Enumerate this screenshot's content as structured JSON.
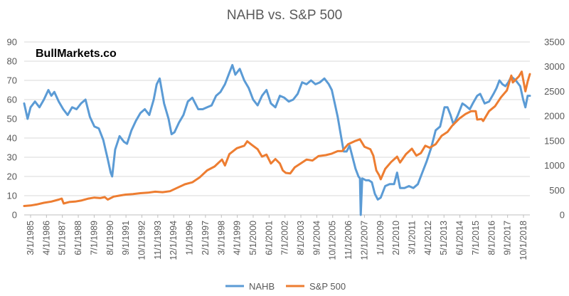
{
  "chart_data": {
    "type": "line",
    "title": "NAHB vs. S&P 500",
    "watermark": "BullMarkets.co",
    "y_left": {
      "min": 0,
      "max": 90,
      "ticks": [
        "0",
        "10",
        "20",
        "30",
        "40",
        "50",
        "60",
        "70",
        "80",
        "90"
      ]
    },
    "y_right": {
      "min": 0,
      "max": 3500,
      "ticks": [
        "0",
        "500",
        "1000",
        "1500",
        "2000",
        "2500",
        "3000",
        "3500"
      ]
    },
    "x_ticks": [
      "3/1/1985",
      "4/1/1986",
      "5/1/1987",
      "6/1/1988",
      "7/1/1989",
      "8/1/1990",
      "9/1/1991",
      "10/1/1992",
      "11/1/1993",
      "12/1/1994",
      "1/1/1996",
      "2/1/1997",
      "3/1/1998",
      "4/1/1999",
      "5/1/2000",
      "6/1/2001",
      "7/1/2002",
      "8/1/2003",
      "9/1/2004",
      "10/1/2005",
      "11/1/2006",
      "12/1/2007",
      "1/1/2009",
      "2/1/2010",
      "3/1/2011",
      "4/1/2012",
      "5/1/2013",
      "6/1/2014",
      "7/1/2015",
      "8/1/2016",
      "9/1/2017",
      "10/1/2018"
    ],
    "x_range": [
      1985.17,
      2019.25
    ],
    "series": [
      {
        "name": "NAHB",
        "axis": "left",
        "color": "#5B9BD5",
        "points": [
          [
            1985.17,
            58
          ],
          [
            1985.4,
            50
          ],
          [
            1985.6,
            56
          ],
          [
            1985.9,
            59
          ],
          [
            1986.2,
            56
          ],
          [
            1986.5,
            60
          ],
          [
            1986.8,
            65
          ],
          [
            1987.0,
            62
          ],
          [
            1987.2,
            64
          ],
          [
            1987.5,
            59
          ],
          [
            1987.8,
            55
          ],
          [
            1988.1,
            52
          ],
          [
            1988.4,
            56
          ],
          [
            1988.7,
            55
          ],
          [
            1989.0,
            58
          ],
          [
            1989.3,
            60
          ],
          [
            1989.6,
            51
          ],
          [
            1989.9,
            46
          ],
          [
            1990.2,
            45
          ],
          [
            1990.5,
            39
          ],
          [
            1990.8,
            29
          ],
          [
            1991.0,
            22
          ],
          [
            1991.1,
            20
          ],
          [
            1991.3,
            34
          ],
          [
            1991.6,
            41
          ],
          [
            1991.9,
            38
          ],
          [
            1992.1,
            37
          ],
          [
            1992.4,
            44
          ],
          [
            1992.7,
            49
          ],
          [
            1993.0,
            53
          ],
          [
            1993.3,
            55
          ],
          [
            1993.6,
            52
          ],
          [
            1993.9,
            60
          ],
          [
            1994.1,
            68
          ],
          [
            1994.3,
            71
          ],
          [
            1994.6,
            58
          ],
          [
            1994.9,
            50
          ],
          [
            1995.1,
            42
          ],
          [
            1995.3,
            43
          ],
          [
            1995.6,
            48
          ],
          [
            1995.9,
            52
          ],
          [
            1996.2,
            59
          ],
          [
            1996.5,
            61
          ],
          [
            1996.9,
            55
          ],
          [
            1997.2,
            55
          ],
          [
            1997.5,
            56
          ],
          [
            1997.8,
            57
          ],
          [
            1998.1,
            62
          ],
          [
            1998.4,
            64
          ],
          [
            1998.7,
            68
          ],
          [
            1999.0,
            74
          ],
          [
            1999.2,
            78
          ],
          [
            1999.4,
            73
          ],
          [
            1999.7,
            76
          ],
          [
            2000.0,
            70
          ],
          [
            2000.3,
            66
          ],
          [
            2000.6,
            60
          ],
          [
            2000.9,
            57
          ],
          [
            2001.2,
            62
          ],
          [
            2001.5,
            65
          ],
          [
            2001.8,
            58
          ],
          [
            2002.1,
            56
          ],
          [
            2002.4,
            62
          ],
          [
            2002.7,
            61
          ],
          [
            2003.0,
            59
          ],
          [
            2003.3,
            60
          ],
          [
            2003.6,
            63
          ],
          [
            2003.9,
            69
          ],
          [
            2004.2,
            68
          ],
          [
            2004.5,
            70
          ],
          [
            2004.8,
            68
          ],
          [
            2005.1,
            69
          ],
          [
            2005.4,
            71
          ],
          [
            2005.7,
            68
          ],
          [
            2005.9,
            65
          ],
          [
            2006.1,
            58
          ],
          [
            2006.3,
            51
          ],
          [
            2006.5,
            42
          ],
          [
            2006.7,
            33
          ],
          [
            2006.9,
            33
          ],
          [
            2007.1,
            36
          ],
          [
            2007.3,
            30
          ],
          [
            2007.5,
            24
          ],
          [
            2007.7,
            20
          ],
          [
            2007.8,
            19
          ],
          [
            2007.85,
            0
          ],
          [
            2007.95,
            19
          ],
          [
            2008.2,
            18
          ],
          [
            2008.4,
            18
          ],
          [
            2008.6,
            17
          ],
          [
            2008.8,
            11
          ],
          [
            2009.0,
            8
          ],
          [
            2009.2,
            9
          ],
          [
            2009.5,
            15
          ],
          [
            2009.8,
            16
          ],
          [
            2010.1,
            16
          ],
          [
            2010.3,
            22
          ],
          [
            2010.5,
            14
          ],
          [
            2010.8,
            14
          ],
          [
            2011.1,
            15
          ],
          [
            2011.4,
            14
          ],
          [
            2011.7,
            16
          ],
          [
            2012.0,
            22
          ],
          [
            2012.3,
            28
          ],
          [
            2012.6,
            35
          ],
          [
            2012.9,
            44
          ],
          [
            2013.2,
            46
          ],
          [
            2013.5,
            56
          ],
          [
            2013.7,
            56
          ],
          [
            2013.9,
            52
          ],
          [
            2014.1,
            47
          ],
          [
            2014.4,
            52
          ],
          [
            2014.7,
            58
          ],
          [
            2014.9,
            57
          ],
          [
            2015.2,
            55
          ],
          [
            2015.4,
            58
          ],
          [
            2015.7,
            62
          ],
          [
            2015.9,
            63
          ],
          [
            2016.2,
            58
          ],
          [
            2016.5,
            59
          ],
          [
            2016.8,
            63
          ],
          [
            2017.0,
            66
          ],
          [
            2017.2,
            70
          ],
          [
            2017.4,
            68
          ],
          [
            2017.6,
            67
          ],
          [
            2017.8,
            69
          ],
          [
            2018.0,
            72
          ],
          [
            2018.3,
            70
          ],
          [
            2018.6,
            67
          ],
          [
            2018.8,
            60
          ],
          [
            2018.95,
            56
          ],
          [
            2019.1,
            62
          ],
          [
            2019.25,
            62
          ]
        ]
      },
      {
        "name": "S&P 500",
        "axis": "right",
        "color": "#ED7D31",
        "points": [
          [
            1985.17,
            180
          ],
          [
            1985.6,
            190
          ],
          [
            1986.0,
            210
          ],
          [
            1986.5,
            245
          ],
          [
            1987.0,
            270
          ],
          [
            1987.5,
            310
          ],
          [
            1987.7,
            330
          ],
          [
            1987.83,
            230
          ],
          [
            1988.2,
            260
          ],
          [
            1988.6,
            270
          ],
          [
            1989.0,
            290
          ],
          [
            1989.5,
            330
          ],
          [
            1989.9,
            350
          ],
          [
            1990.3,
            340
          ],
          [
            1990.6,
            360
          ],
          [
            1990.8,
            310
          ],
          [
            1991.2,
            370
          ],
          [
            1991.6,
            390
          ],
          [
            1992.0,
            410
          ],
          [
            1992.5,
            420
          ],
          [
            1993.0,
            440
          ],
          [
            1993.5,
            450
          ],
          [
            1994.0,
            470
          ],
          [
            1994.5,
            460
          ],
          [
            1995.0,
            480
          ],
          [
            1995.5,
            550
          ],
          [
            1996.0,
            620
          ],
          [
            1996.5,
            660
          ],
          [
            1997.0,
            760
          ],
          [
            1997.5,
            900
          ],
          [
            1998.0,
            980
          ],
          [
            1998.5,
            1120
          ],
          [
            1998.7,
            1000
          ],
          [
            1999.0,
            1230
          ],
          [
            1999.5,
            1350
          ],
          [
            2000.0,
            1400
          ],
          [
            2000.2,
            1490
          ],
          [
            2000.5,
            1420
          ],
          [
            2000.9,
            1330
          ],
          [
            2001.2,
            1180
          ],
          [
            2001.5,
            1220
          ],
          [
            2001.8,
            1040
          ],
          [
            2002.1,
            1130
          ],
          [
            2002.4,
            1040
          ],
          [
            2002.6,
            900
          ],
          [
            2002.8,
            850
          ],
          [
            2003.1,
            840
          ],
          [
            2003.4,
            960
          ],
          [
            2003.8,
            1040
          ],
          [
            2004.2,
            1120
          ],
          [
            2004.6,
            1100
          ],
          [
            2005.0,
            1190
          ],
          [
            2005.5,
            1210
          ],
          [
            2005.9,
            1240
          ],
          [
            2006.3,
            1290
          ],
          [
            2006.6,
            1290
          ],
          [
            2007.0,
            1430
          ],
          [
            2007.5,
            1500
          ],
          [
            2007.8,
            1530
          ],
          [
            2008.1,
            1380
          ],
          [
            2008.5,
            1330
          ],
          [
            2008.7,
            1200
          ],
          [
            2008.9,
            900
          ],
          [
            2009.1,
            800
          ],
          [
            2009.2,
            720
          ],
          [
            2009.5,
            930
          ],
          [
            2009.9,
            1070
          ],
          [
            2010.3,
            1180
          ],
          [
            2010.5,
            1060
          ],
          [
            2010.9,
            1230
          ],
          [
            2011.3,
            1340
          ],
          [
            2011.6,
            1200
          ],
          [
            2011.9,
            1250
          ],
          [
            2012.2,
            1400
          ],
          [
            2012.5,
            1360
          ],
          [
            2012.9,
            1430
          ],
          [
            2013.3,
            1600
          ],
          [
            2013.7,
            1680
          ],
          [
            2014.0,
            1800
          ],
          [
            2014.5,
            1950
          ],
          [
            2014.9,
            2040
          ],
          [
            2015.3,
            2100
          ],
          [
            2015.6,
            2100
          ],
          [
            2015.7,
            1930
          ],
          [
            2016.0,
            1940
          ],
          [
            2016.1,
            1900
          ],
          [
            2016.5,
            2100
          ],
          [
            2016.9,
            2200
          ],
          [
            2017.3,
            2380
          ],
          [
            2017.7,
            2520
          ],
          [
            2018.0,
            2820
          ],
          [
            2018.1,
            2680
          ],
          [
            2018.5,
            2800
          ],
          [
            2018.7,
            2900
          ],
          [
            2018.95,
            2500
          ],
          [
            2019.1,
            2700
          ],
          [
            2019.25,
            2850
          ]
        ]
      }
    ],
    "legend": [
      {
        "name": "NAHB",
        "color": "#5B9BD5"
      },
      {
        "name": "S&P 500",
        "color": "#ED7D31"
      }
    ],
    "legend_position": "bottom"
  }
}
